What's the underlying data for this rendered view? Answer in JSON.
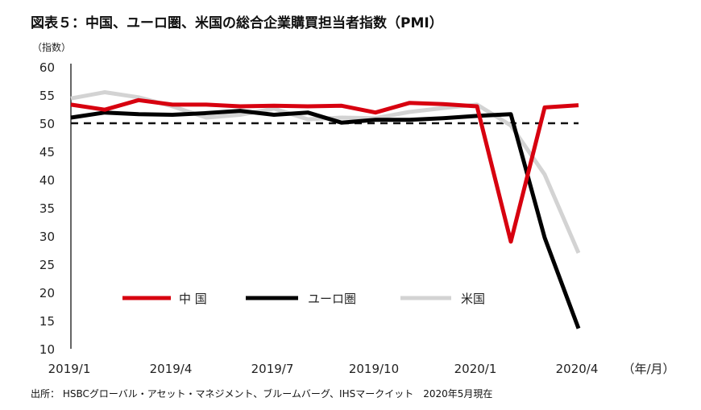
{
  "chart_data": {
    "type": "line",
    "title": "図表５：中国、ユーロ圏、米国の総合企業購買担当者指数（PMI）",
    "ylabel": "（指数）",
    "xlabel": "（年/月）",
    "ylim": [
      10,
      60
    ],
    "yticks": [
      10,
      15,
      20,
      25,
      30,
      35,
      40,
      45,
      50,
      55,
      60
    ],
    "x": [
      "2019/1",
      "2019/2",
      "2019/3",
      "2019/4",
      "2019/5",
      "2019/6",
      "2019/7",
      "2019/8",
      "2019/9",
      "2019/10",
      "2019/11",
      "2019/12",
      "2020/1",
      "2020/2",
      "2020/3",
      "2020/4"
    ],
    "xtick_labels": [
      "2019/1",
      "2019/4",
      "2019/7",
      "2019/10",
      "2020/1",
      "2020/4"
    ],
    "reference_line": 50,
    "grid": false,
    "legend_position": "bottom-center",
    "series": [
      {
        "name": "中 国",
        "color": "#d7000f",
        "values": [
          53.3,
          52.4,
          54.1,
          53.3,
          53.3,
          53.0,
          53.1,
          53.0,
          53.1,
          51.9,
          53.6,
          53.4,
          53.0,
          29.0,
          52.8,
          53.2
        ]
      },
      {
        "name": "ユーロ圏",
        "color": "#000000",
        "values": [
          51.0,
          51.9,
          51.6,
          51.5,
          51.8,
          52.2,
          51.5,
          51.9,
          50.1,
          50.6,
          50.6,
          50.9,
          51.3,
          51.6,
          29.7,
          13.6
        ]
      },
      {
        "name": "米国",
        "color": "#d3d3d3",
        "values": [
          54.4,
          55.5,
          54.6,
          53.0,
          51.0,
          51.5,
          52.6,
          50.7,
          51.0,
          50.9,
          52.0,
          52.7,
          53.3,
          49.6,
          40.9,
          27.0
        ]
      }
    ]
  },
  "source": "出所： HSBCグローバル・アセット・マネジメント、ブルームバーグ、IHSマークイット　2020年5月現在"
}
